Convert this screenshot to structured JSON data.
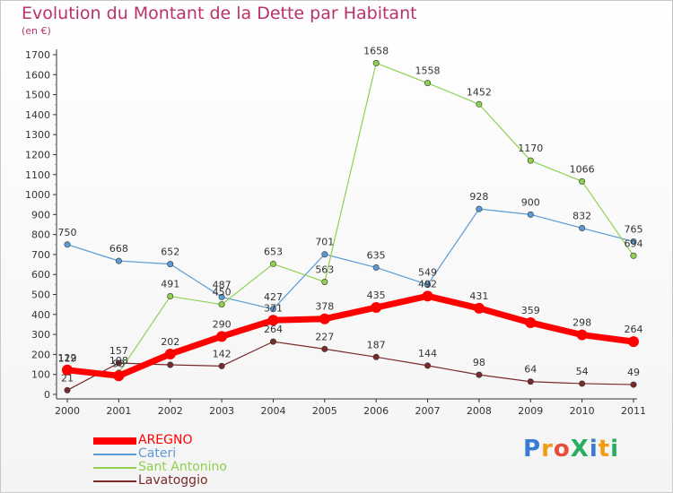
{
  "header": {
    "title": "Evolution du Montant de la Dette par Habitant",
    "subtitle": "(en €)"
  },
  "brand": {
    "text": "ProXiti",
    "colors": [
      "#3a7bd5",
      "#f39c12",
      "#e74c3c",
      "#27ae60",
      "#3a7bd5",
      "#f39c12",
      "#27ae60"
    ]
  },
  "chart_data": {
    "type": "line",
    "title": "Evolution du Montant de la Dette par Habitant",
    "subtitle": "(en €)",
    "categories": [
      "2000",
      "2001",
      "2002",
      "2003",
      "2004",
      "2005",
      "2006",
      "2007",
      "2008",
      "2009",
      "2010",
      "2011"
    ],
    "ylim": [
      0,
      1700
    ],
    "yticks": [
      0,
      100,
      200,
      300,
      400,
      500,
      600,
      700,
      800,
      900,
      1000,
      1100,
      1200,
      1300,
      1400,
      1500,
      1600,
      1700
    ],
    "grid": false,
    "legend_position": "bottom-left",
    "series": [
      {
        "name": "AREGNO",
        "color": "#ff0000",
        "emphasis": true,
        "values": [
          122,
          93,
          202,
          290,
          371,
          378,
          435,
          492,
          431,
          359,
          298,
          264
        ],
        "labels": [
          "122",
          "93",
          "202",
          "290",
          "371",
          "378",
          "435",
          "492",
          "431",
          "359",
          "298",
          "264"
        ]
      },
      {
        "name": "Cateri",
        "color": "#5b9bd5",
        "emphasis": false,
        "values": [
          750,
          668,
          652,
          487,
          427,
          701,
          635,
          549,
          928,
          900,
          832,
          765
        ],
        "labels": [
          "750",
          "668",
          "652",
          "487",
          "427",
          "701",
          "635",
          "549",
          "928",
          "900",
          "832",
          "765"
        ]
      },
      {
        "name": "Sant Antonino",
        "color": "#8fd14f",
        "emphasis": false,
        "values": [
          119,
          108,
          491,
          450,
          653,
          563,
          1658,
          1558,
          1452,
          1170,
          1066,
          694
        ],
        "labels": [
          "119",
          "108",
          "491",
          "450",
          "653",
          "563",
          "1658",
          "1558",
          "1452",
          "1170",
          "1066",
          "694"
        ]
      },
      {
        "name": "Lavatoggio",
        "color": "#7b2a2a",
        "emphasis": false,
        "values": [
          21,
          157,
          148,
          142,
          264,
          227,
          187,
          144,
          98,
          64,
          54,
          49
        ],
        "labels": [
          "21",
          "157",
          "",
          "142",
          "264",
          "227",
          "187",
          "144",
          "98",
          "64",
          "54",
          "49"
        ]
      }
    ]
  }
}
